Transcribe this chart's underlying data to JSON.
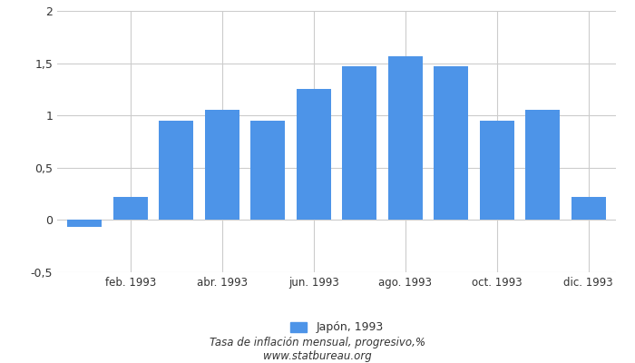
{
  "months_count": 12,
  "values": [
    -0.07,
    0.22,
    0.95,
    1.05,
    0.95,
    1.25,
    1.47,
    1.57,
    1.47,
    0.95,
    1.05,
    0.22
  ],
  "bar_color": "#4d94e8",
  "xtick_labels": [
    "feb. 1993",
    "abr. 1993",
    "jun. 1993",
    "ago. 1993",
    "oct. 1993",
    "dic. 1993"
  ],
  "xtick_positions": [
    1,
    3,
    5,
    7,
    9,
    11
  ],
  "ylim": [
    -0.5,
    2.0
  ],
  "yticks": [
    -0.5,
    0.0,
    0.5,
    1.0,
    1.5,
    2.0
  ],
  "ytick_labels": [
    "-0,5",
    "0",
    "0,5",
    "1",
    "1,5",
    "2"
  ],
  "legend_label": "Japón, 1993",
  "xlabel_line1": "Tasa de inflación mensual, progresivo,%",
  "xlabel_line2": "www.statbureau.org",
  "tick_label_color": "#333333",
  "background_color": "#ffffff",
  "grid_color": "#cccccc",
  "text_color": "#333333"
}
